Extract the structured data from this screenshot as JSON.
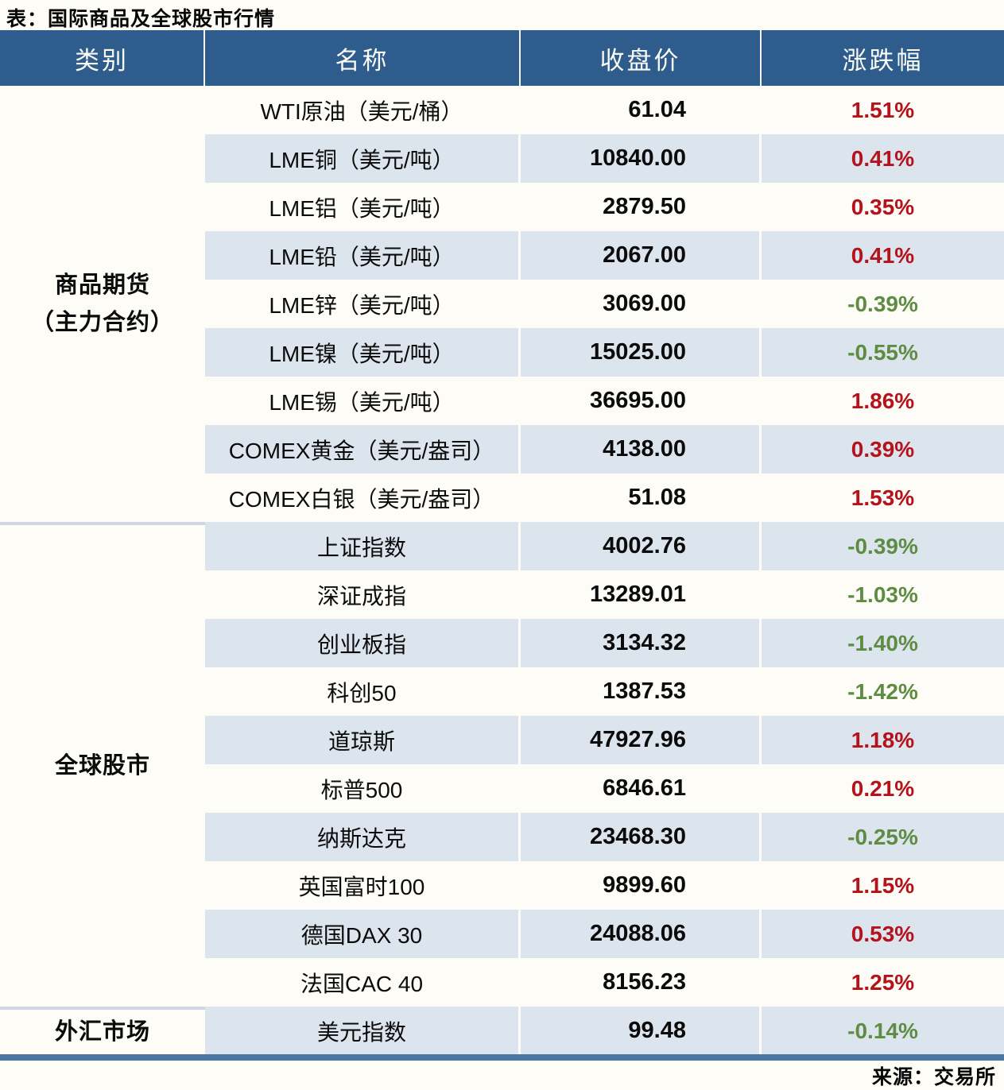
{
  "title": "表：国际商品及全球股市行情",
  "source": "来源：交易所",
  "colors": {
    "header_bg": "#2e5d8d",
    "stripe_bg": "#dce4ee",
    "page_bg": "#fdfcf6",
    "up_red": "#b5121b",
    "down_green": "#5e8c42",
    "bottom_rule": "#4a76a2",
    "section_divider": "#ccd7e2"
  },
  "table": {
    "headers": [
      "类别",
      "名称",
      "收盘价",
      "涨跌幅"
    ],
    "sections": [
      {
        "category_lines": [
          "商品期货",
          "（主力合约）"
        ],
        "rows": [
          {
            "name": "WTI原油（美元/桶）",
            "close": "61.04",
            "change": "1.51%",
            "dir": "up"
          },
          {
            "name": "LME铜（美元/吨）",
            "close": "10840.00",
            "change": "0.41%",
            "dir": "up"
          },
          {
            "name": "LME铝（美元/吨）",
            "close": "2879.50",
            "change": "0.35%",
            "dir": "up"
          },
          {
            "name": "LME铅（美元/吨）",
            "close": "2067.00",
            "change": "0.41%",
            "dir": "up"
          },
          {
            "name": "LME锌（美元/吨）",
            "close": "3069.00",
            "change": "-0.39%",
            "dir": "down"
          },
          {
            "name": "LME镍（美元/吨）",
            "close": "15025.00",
            "change": "-0.55%",
            "dir": "down"
          },
          {
            "name": "LME锡（美元/吨）",
            "close": "36695.00",
            "change": "1.86%",
            "dir": "up"
          },
          {
            "name": "COMEX黄金（美元/盎司）",
            "close": "4138.00",
            "change": "0.39%",
            "dir": "up"
          },
          {
            "name": "COMEX白银（美元/盎司）",
            "close": "51.08",
            "change": "1.53%",
            "dir": "up"
          }
        ]
      },
      {
        "category_lines": [
          "全球股市"
        ],
        "rows": [
          {
            "name": "上证指数",
            "close": "4002.76",
            "change": "-0.39%",
            "dir": "down"
          },
          {
            "name": "深证成指",
            "close": "13289.01",
            "change": "-1.03%",
            "dir": "down"
          },
          {
            "name": "创业板指",
            "close": "3134.32",
            "change": "-1.40%",
            "dir": "down"
          },
          {
            "name": "科创50",
            "close": "1387.53",
            "change": "-1.42%",
            "dir": "down"
          },
          {
            "name": "道琼斯",
            "close": "47927.96",
            "change": "1.18%",
            "dir": "up"
          },
          {
            "name": "标普500",
            "close": "6846.61",
            "change": "0.21%",
            "dir": "up"
          },
          {
            "name": "纳斯达克",
            "close": "23468.30",
            "change": "-0.25%",
            "dir": "down"
          },
          {
            "name": "英国富时100",
            "close": "9899.60",
            "change": "1.15%",
            "dir": "up"
          },
          {
            "name": "德国DAX 30",
            "close": "24088.06",
            "change": "0.53%",
            "dir": "up"
          },
          {
            "name": "法国CAC 40",
            "close": "8156.23",
            "change": "1.25%",
            "dir": "up"
          }
        ]
      },
      {
        "category_lines": [
          "外汇市场"
        ],
        "rows": [
          {
            "name": "美元指数",
            "close": "99.48",
            "change": "-0.14%",
            "dir": "down"
          }
        ]
      }
    ]
  }
}
